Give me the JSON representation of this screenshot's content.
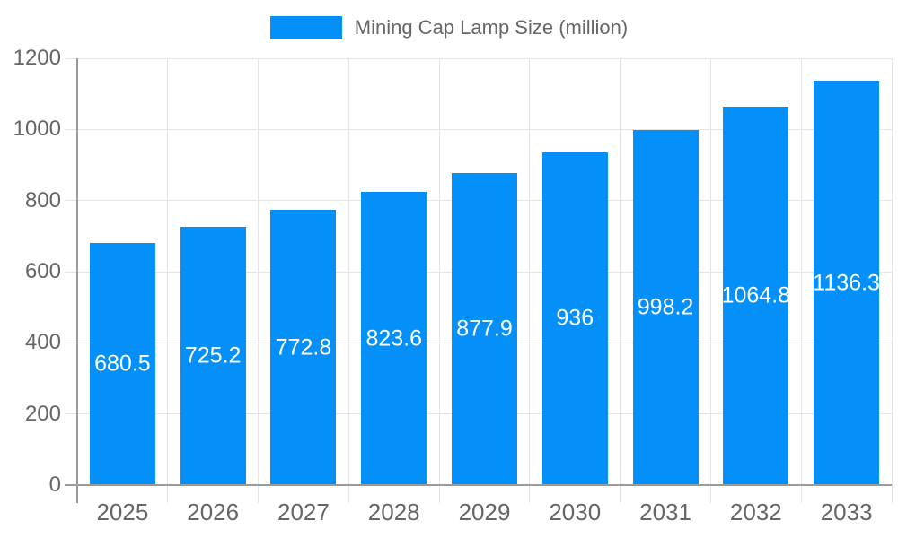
{
  "chart_data": {
    "type": "bar",
    "title": "Mining Cap Lamp Size (million)",
    "legend": {
      "position": "top",
      "label": "Mining Cap Lamp Size (million)"
    },
    "categories": [
      "2025",
      "2026",
      "2027",
      "2028",
      "2029",
      "2030",
      "2031",
      "2032",
      "2033"
    ],
    "series": [
      {
        "name": "Mining Cap Lamp Size (million)",
        "values": [
          680.5,
          725.2,
          772.8,
          823.6,
          877.9,
          936,
          998.2,
          1064.8,
          1136.3
        ],
        "value_labels": [
          "680.5",
          "725.2",
          "772.8",
          "823.6",
          "877.9",
          "936",
          "998.2",
          "1064.8",
          "1136.3"
        ]
      }
    ],
    "xlabel": "",
    "ylabel": "",
    "ylim": [
      0,
      1200
    ],
    "ytick_step": 200,
    "ytick_labels": [
      "0",
      "200",
      "400",
      "600",
      "800",
      "1000",
      "1200"
    ],
    "grid": true,
    "value_label_position": "inside-center",
    "colors": {
      "bar": "#0590f9",
      "grid": "#e4e4e4",
      "axis": "#9b9b9b",
      "tick_label": "#666666",
      "legend_text": "#666666",
      "value_label": "#ffffff",
      "background": "#ffffff"
    }
  }
}
